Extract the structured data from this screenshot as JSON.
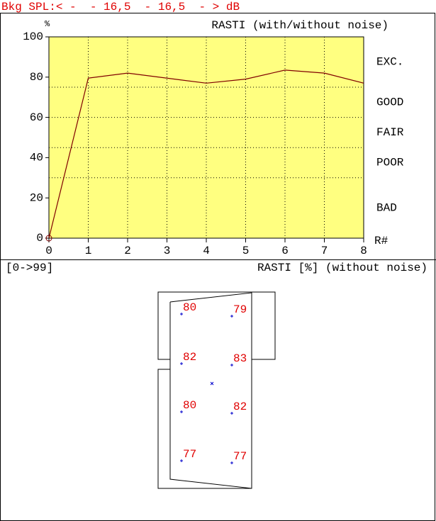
{
  "header": {
    "text": "Bkg SPL:< -  - 16,5  - 16,5  - > dB",
    "color": "#e00000"
  },
  "chart_data": {
    "type": "line",
    "title": "RASTI (with/without noise)",
    "y_label": "%",
    "x_label": "R#",
    "x": [
      0,
      1,
      2,
      3,
      4,
      5,
      6,
      7,
      8
    ],
    "series": [
      {
        "name": "RASTI",
        "color": "#800000",
        "values": [
          0,
          79.5,
          82,
          79.5,
          77,
          79,
          83.5,
          82,
          77
        ]
      }
    ],
    "xlim": [
      0,
      8
    ],
    "xticks": [
      0,
      1,
      2,
      3,
      4,
      5,
      6,
      7,
      8
    ],
    "ylim": [
      0,
      100
    ],
    "yticks": [
      0,
      20,
      40,
      60,
      80,
      100
    ],
    "background": "#ffff80",
    "grid": true,
    "bands": [
      {
        "label": "EXC.",
        "from": 75,
        "to": 100
      },
      {
        "label": "GOOD",
        "from": 60,
        "to": 75
      },
      {
        "label": "FAIR",
        "from": 45,
        "to": 60
      },
      {
        "label": "POOR",
        "from": 30,
        "to": 45
      },
      {
        "label": "BAD",
        "from": 0,
        "to": 30
      }
    ]
  },
  "plan": {
    "range": "[0->99]",
    "title": "RASTI [%] (without noise)",
    "points": [
      {
        "value": "80"
      },
      {
        "value": "79"
      },
      {
        "value": "82"
      },
      {
        "value": "83"
      },
      {
        "value": "80"
      },
      {
        "value": "82"
      },
      {
        "value": "77"
      },
      {
        "value": "77"
      }
    ]
  }
}
